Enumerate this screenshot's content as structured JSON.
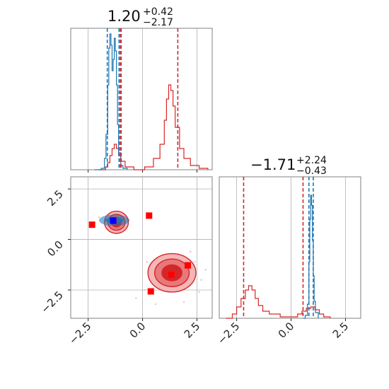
{
  "colors": {
    "blue": "#1f77b4",
    "red": "#d62728",
    "red_fill": "#f4b6b7",
    "red_mid": "#e8787a",
    "marker_red": "#ff0000",
    "marker_blue": "#0000ff",
    "grid": "#b0b0b0",
    "frame": "#808080"
  },
  "chart_data": {
    "type": "corner",
    "panel_titles": {
      "param1": {
        "median": "1.20",
        "upper": "+0.42",
        "lower": "−2.17"
      },
      "param2": {
        "median": "−1.71",
        "upper": "+2.24",
        "lower": "−0.43"
      }
    },
    "tick_labels": {
      "x": [
        "−2.5",
        "0.0",
        "2.5"
      ],
      "y": [
        "2.5",
        "0.0",
        "−2.5"
      ]
    },
    "ticks": [
      -2.5,
      0.0,
      2.5
    ],
    "xlim": [
      -3.3,
      3.2
    ],
    "ylim": [
      -3.9,
      3.1
    ],
    "grid": true,
    "hist1": {
      "blue_quantiles": [
        -1.62,
        -1.08,
        -0.98
      ],
      "red_quantiles": [
        -1.02,
        1.62
      ],
      "blue_points": [
        [
          -2.2,
          0
        ],
        [
          -1.9,
          0.01
        ],
        [
          -1.75,
          0.08
        ],
        [
          -1.68,
          0.25
        ],
        [
          -1.6,
          0.6
        ],
        [
          -1.55,
          0.86
        ],
        [
          -1.5,
          0.96
        ],
        [
          -1.45,
          0.88
        ],
        [
          -1.4,
          0.7
        ],
        [
          -1.35,
          0.78
        ],
        [
          -1.3,
          0.93
        ],
        [
          -1.25,
          0.84
        ],
        [
          -1.2,
          0.6
        ],
        [
          -1.15,
          0.32
        ],
        [
          -1.1,
          0.12
        ],
        [
          -1.0,
          0.03
        ],
        [
          -0.9,
          0.01
        ],
        [
          -0.7,
          0
        ]
      ],
      "red_points": [
        [
          -2.0,
          0
        ],
        [
          -1.7,
          0.02
        ],
        [
          -1.6,
          0.05
        ],
        [
          -1.5,
          0.1
        ],
        [
          -1.4,
          0.15
        ],
        [
          -1.3,
          0.18
        ],
        [
          -1.2,
          0.15
        ],
        [
          -1.1,
          0.1
        ],
        [
          -1.0,
          0.06
        ],
        [
          -0.8,
          0.02
        ],
        [
          -0.4,
          0
        ],
        [
          0.1,
          0.02
        ],
        [
          0.5,
          0.08
        ],
        [
          0.8,
          0.18
        ],
        [
          1.0,
          0.35
        ],
        [
          1.1,
          0.5
        ],
        [
          1.2,
          0.6
        ],
        [
          1.3,
          0.56
        ],
        [
          1.4,
          0.45
        ],
        [
          1.5,
          0.3
        ],
        [
          1.7,
          0.15
        ],
        [
          1.9,
          0.08
        ],
        [
          2.2,
          0.03
        ],
        [
          2.6,
          0.01
        ],
        [
          3.0,
          0
        ]
      ]
    },
    "hist2": {
      "blue_quantiles": [
        0.82,
        1.02
      ],
      "red_quantiles": [
        -2.18,
        0.55
      ],
      "blue_points": [
        [
          0.55,
          0
        ],
        [
          0.65,
          0.02
        ],
        [
          0.75,
          0.1
        ],
        [
          0.82,
          0.4
        ],
        [
          0.86,
          0.7
        ],
        [
          0.9,
          0.87
        ],
        [
          0.94,
          0.8
        ],
        [
          0.98,
          0.55
        ],
        [
          1.02,
          0.3
        ],
        [
          1.06,
          0.12
        ],
        [
          1.12,
          0.04
        ],
        [
          1.25,
          0
        ]
      ],
      "red_points": [
        [
          -3.0,
          0
        ],
        [
          -2.7,
          0.03
        ],
        [
          -2.5,
          0.08
        ],
        [
          -2.3,
          0.14
        ],
        [
          -2.1,
          0.2
        ],
        [
          -1.95,
          0.23
        ],
        [
          -1.8,
          0.2
        ],
        [
          -1.65,
          0.14
        ],
        [
          -1.5,
          0.09
        ],
        [
          -1.3,
          0.05
        ],
        [
          -1.0,
          0.03
        ],
        [
          -0.5,
          0.01
        ],
        [
          0.0,
          0.01
        ],
        [
          0.3,
          0.03
        ],
        [
          0.5,
          0.05
        ],
        [
          0.7,
          0.07
        ],
        [
          0.9,
          0.08
        ],
        [
          1.1,
          0.06
        ],
        [
          1.3,
          0.03
        ],
        [
          1.5,
          0.01
        ],
        [
          1.8,
          0
        ]
      ]
    },
    "markers_red": [
      [
        -2.32,
        0.73
      ],
      [
        -1.34,
        0.95
      ],
      [
        0.3,
        1.18
      ],
      [
        2.08,
        -1.28
      ],
      [
        1.32,
        -1.75
      ],
      [
        0.38,
        -2.57
      ]
    ],
    "marker_blue": [
      -1.35,
      0.93
    ],
    "blob_blue": {
      "center": [
        -1.3,
        0.95
      ],
      "rx": 0.7,
      "ry": 0.28
    },
    "contours_red": [
      {
        "center": [
          -1.2,
          0.85
        ],
        "rx": 0.55,
        "ry": 0.55
      },
      {
        "center": [
          1.35,
          -1.65
        ],
        "rx": 1.1,
        "ry": 0.95
      }
    ],
    "scatter_faint": [
      [
        1.8,
        -0.9
      ],
      [
        2.4,
        -1.1
      ],
      [
        2.9,
        -1.5
      ],
      [
        2.7,
        -2.0
      ],
      [
        0.1,
        -2.5
      ],
      [
        -0.3,
        -2.9
      ],
      [
        0.6,
        -3.2
      ],
      [
        1.9,
        -3.1
      ],
      [
        2.6,
        -2.6
      ],
      [
        -0.7,
        0.9
      ],
      [
        -2.0,
        1.1
      ],
      [
        0.2,
        -1.1
      ],
      [
        2.2,
        -0.6
      ]
    ]
  }
}
